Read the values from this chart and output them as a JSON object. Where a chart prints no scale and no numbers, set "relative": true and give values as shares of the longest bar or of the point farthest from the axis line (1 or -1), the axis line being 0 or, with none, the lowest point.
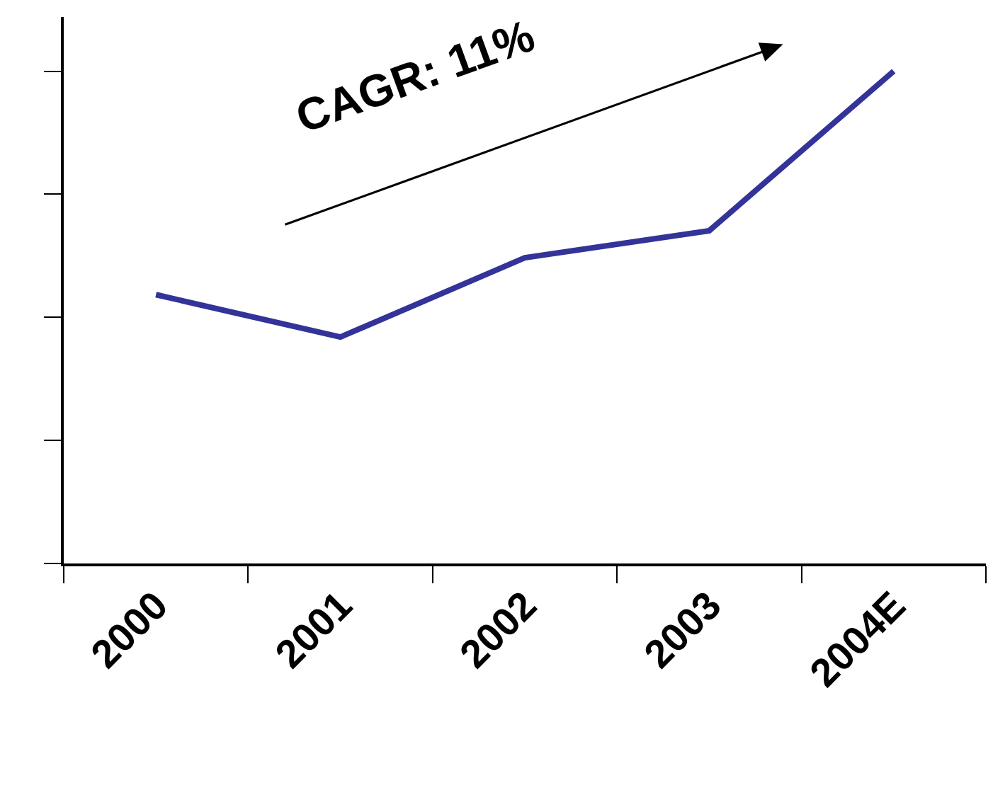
{
  "chart_data": {
    "type": "line",
    "relative": true,
    "categories": [
      "2000",
      "2001",
      "2002",
      "2003",
      "2004E"
    ],
    "series": [
      {
        "color": "#333399",
        "values": [
          0.546,
          0.46,
          0.621,
          0.676,
          1
        ]
      }
    ],
    "annotations": [
      "CAGR: 11%"
    ],
    "marker": "none",
    "line_style": "solid"
  }
}
